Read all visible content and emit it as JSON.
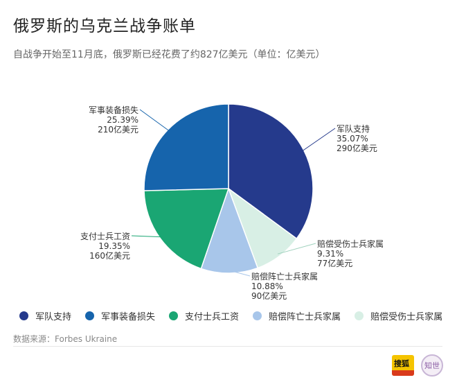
{
  "header": {
    "title": "俄罗斯的乌克兰战争账单",
    "subtitle": "自战争开始至11月底，俄罗斯已经花费了约827亿美元（单位：亿美元）"
  },
  "chart_data": {
    "type": "pie",
    "title": "俄罗斯的乌克兰战争账单",
    "subtitle": "自战争开始至11月底，俄罗斯已经花费了约827亿美元（单位：亿美元）",
    "unit": "亿美元",
    "slices": [
      {
        "label": "军队支持",
        "value": 290,
        "percent": "35.07%",
        "value_text": "290亿美元",
        "color": "#253a8c"
      },
      {
        "label": "赔偿受伤士兵家属",
        "value": 77,
        "percent": "9.31%",
        "value_text": "77亿美元",
        "color": "#d8efe5"
      },
      {
        "label": "赔偿阵亡士兵家属",
        "value": 90,
        "percent": "10.88%",
        "value_text": "90亿美元",
        "color": "#a8c6ea"
      },
      {
        "label": "支付士兵工资",
        "value": 160,
        "percent": "19.35%",
        "value_text": "160亿美元",
        "color": "#1aa673"
      },
      {
        "label": "军事装备损失",
        "value": 210,
        "percent": "25.39%",
        "value_text": "210亿美元",
        "color": "#1664ac"
      }
    ],
    "legend": [
      "军队支持",
      "军事装备损失",
      "支付士兵工资",
      "赔偿阵亡士兵家属",
      "赔偿受伤士兵家属"
    ],
    "legend_colors": [
      "#253a8c",
      "#1664ac",
      "#1aa673",
      "#a8c6ea",
      "#d8efe5"
    ],
    "legend_position": "bottom"
  },
  "footer": {
    "source": "数据来源：Forbes Ukraine",
    "logo_sohu": "搜狐",
    "logo_zhi": "知世"
  }
}
